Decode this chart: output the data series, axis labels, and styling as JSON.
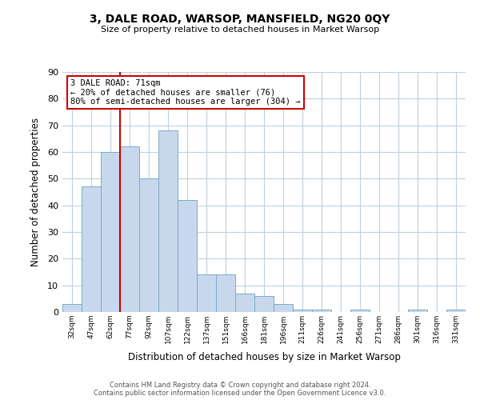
{
  "title": "3, DALE ROAD, WARSOP, MANSFIELD, NG20 0QY",
  "subtitle": "Size of property relative to detached houses in Market Warsop",
  "xlabel": "Distribution of detached houses by size in Market Warsop",
  "ylabel": "Number of detached properties",
  "bin_labels": [
    "32sqm",
    "47sqm",
    "62sqm",
    "77sqm",
    "92sqm",
    "107sqm",
    "122sqm",
    "137sqm",
    "151sqm",
    "166sqm",
    "181sqm",
    "196sqm",
    "211sqm",
    "226sqm",
    "241sqm",
    "256sqm",
    "271sqm",
    "286sqm",
    "301sqm",
    "316sqm",
    "331sqm"
  ],
  "bar_values": [
    3,
    47,
    60,
    62,
    50,
    68,
    42,
    14,
    14,
    7,
    6,
    3,
    1,
    1,
    0,
    1,
    0,
    0,
    1,
    0,
    1
  ],
  "bar_color": "#c8d8ec",
  "bar_edge_color": "#7aaac8",
  "vline_color": "#cc0000",
  "annotation_line1": "3 DALE ROAD: 71sqm",
  "annotation_line2": "← 20% of detached houses are smaller (76)",
  "annotation_line3": "80% of semi-detached houses are larger (304) →",
  "annotation_box_facecolor": "#ffffff",
  "annotation_box_edgecolor": "#cc0000",
  "ylim": [
    0,
    90
  ],
  "yticks": [
    0,
    10,
    20,
    30,
    40,
    50,
    60,
    70,
    80,
    90
  ],
  "footer_line1": "Contains HM Land Registry data © Crown copyright and database right 2024.",
  "footer_line2": "Contains public sector information licensed under the Open Government Licence v3.0.",
  "background_color": "#ffffff",
  "grid_color": "#c0d0e0"
}
